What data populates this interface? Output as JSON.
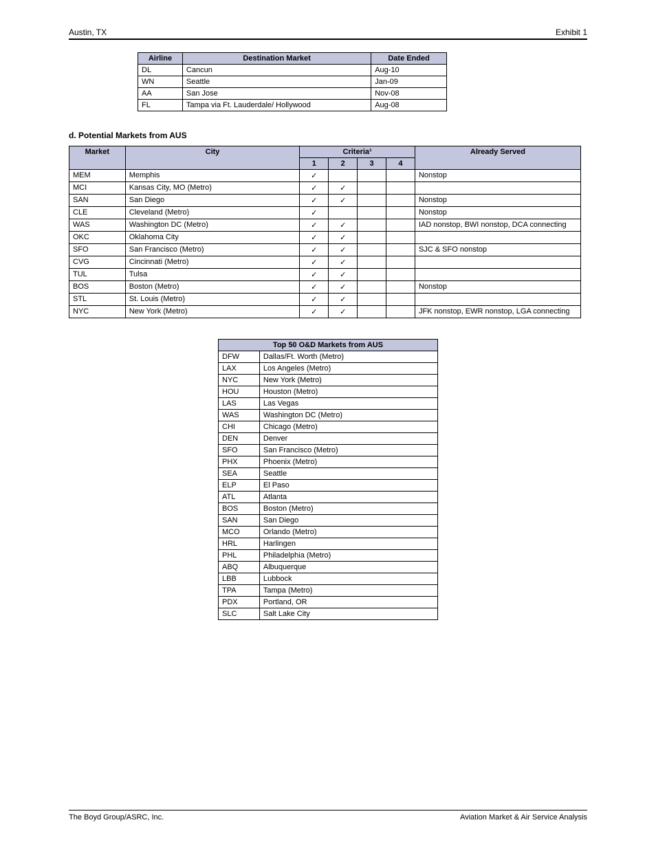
{
  "header": {
    "left": "Austin, TX",
    "right": "Exhibit 1"
  },
  "table1": {
    "headers": [
      "Airline",
      "Destination Market",
      "Date Ended"
    ],
    "rows": [
      [
        "DL",
        "Cancun",
        "Aug-10"
      ],
      [
        "WN",
        "Seattle",
        "Jan-09"
      ],
      [
        "AA",
        "San Jose",
        "Nov-08"
      ],
      [
        "FL",
        "Tampa via Ft. Lauderdale/ Hollywood",
        "Aug-08"
      ]
    ]
  },
  "section2": {
    "title": "d.  Potential Markets from AUS",
    "headers_row1": [
      "Market",
      "City",
      "Criteria¹",
      "Already Served"
    ],
    "headers_row2": [
      "1",
      "2",
      "3",
      "4"
    ],
    "rows": [
      [
        "MEM",
        "Memphis",
        true,
        false,
        false,
        false,
        "Nonstop"
      ],
      [
        "MCI",
        "Kansas City, MO (Metro)",
        true,
        true,
        false,
        false,
        ""
      ],
      [
        "SAN",
        "San Diego",
        true,
        true,
        false,
        false,
        "Nonstop"
      ],
      [
        "CLE",
        "Cleveland (Metro)",
        true,
        false,
        false,
        false,
        "Nonstop"
      ],
      [
        "WAS",
        "Washington DC (Metro)",
        true,
        true,
        false,
        false,
        "IAD nonstop, BWI nonstop, DCA connecting"
      ],
      [
        "OKC",
        "Oklahoma City",
        true,
        true,
        false,
        false,
        ""
      ],
      [
        "SFO",
        "San Francisco (Metro)",
        true,
        true,
        false,
        false,
        "SJC & SFO nonstop"
      ],
      [
        "CVG",
        "Cincinnati (Metro)",
        true,
        true,
        false,
        false,
        ""
      ],
      [
        "TUL",
        "Tulsa",
        true,
        true,
        false,
        false,
        ""
      ],
      [
        "BOS",
        "Boston (Metro)",
        true,
        true,
        false,
        false,
        "Nonstop"
      ],
      [
        "STL",
        "St. Louis (Metro)",
        true,
        true,
        false,
        false,
        ""
      ],
      [
        "NYC",
        "New York (Metro)",
        true,
        true,
        false,
        false,
        "JFK nonstop, EWR nonstop, LGA connecting"
      ]
    ]
  },
  "table3": {
    "header": "Top 50 O&D Markets from AUS",
    "rows": [
      [
        "DFW",
        "Dallas/Ft. Worth (Metro)"
      ],
      [
        "LAX",
        "Los Angeles (Metro)"
      ],
      [
        "NYC",
        "New York (Metro)"
      ],
      [
        "HOU",
        "Houston (Metro)"
      ],
      [
        "LAS",
        "Las Vegas"
      ],
      [
        "WAS",
        "Washington DC (Metro)"
      ],
      [
        "CHI",
        "Chicago (Metro)"
      ],
      [
        "DEN",
        "Denver"
      ],
      [
        "SFO",
        "San Francisco (Metro)"
      ],
      [
        "PHX",
        "Phoenix (Metro)"
      ],
      [
        "SEA",
        "Seattle"
      ],
      [
        "ELP",
        "El Paso"
      ],
      [
        "ATL",
        "Atlanta"
      ],
      [
        "BOS",
        "Boston (Metro)"
      ],
      [
        "SAN",
        "San Diego"
      ],
      [
        "MCO",
        "Orlando (Metro)"
      ],
      [
        "HRL",
        "Harlingen"
      ],
      [
        "PHL",
        "Philadelphia (Metro)"
      ],
      [
        "ABQ",
        "Albuquerque"
      ],
      [
        "LBB",
        "Lubbock"
      ],
      [
        "TPA",
        "Tampa (Metro)"
      ],
      [
        "PDX",
        "Portland, OR"
      ],
      [
        "SLC",
        "Salt Lake City"
      ]
    ]
  },
  "footer": {
    "left": "The Boyd Group/ASRC, Inc.",
    "right": "Aviation Market & Air Service Analysis"
  }
}
